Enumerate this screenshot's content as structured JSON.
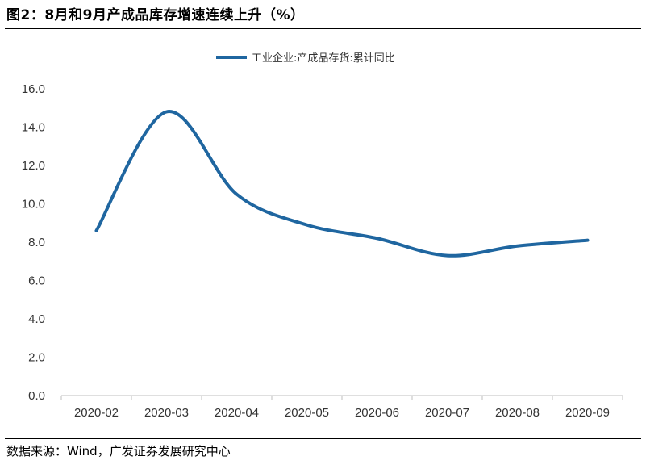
{
  "header": {
    "title": "图2：8月和9月产成品库存增速连续上升（%）"
  },
  "footer": {
    "source": "数据来源：Wind，广发证券发展研究中心"
  },
  "chart_data": {
    "type": "line",
    "title": "",
    "xlabel": "",
    "ylabel": "",
    "categories": [
      "2020-02",
      "2020-03",
      "2020-04",
      "2020-05",
      "2020-06",
      "2020-07",
      "2020-08",
      "2020-09"
    ],
    "series": [
      {
        "name": "工业企业:产成品存货:累计同比",
        "values": [
          8.6,
          14.8,
          10.5,
          8.9,
          8.2,
          7.3,
          7.8,
          8.1
        ],
        "color": "#1f66a0"
      }
    ],
    "ylim": [
      0,
      16
    ],
    "yticks": [
      "0.0",
      "2.0",
      "4.0",
      "6.0",
      "8.0",
      "10.0",
      "12.0",
      "14.0",
      "16.0"
    ],
    "grid": false,
    "legend": "top"
  }
}
